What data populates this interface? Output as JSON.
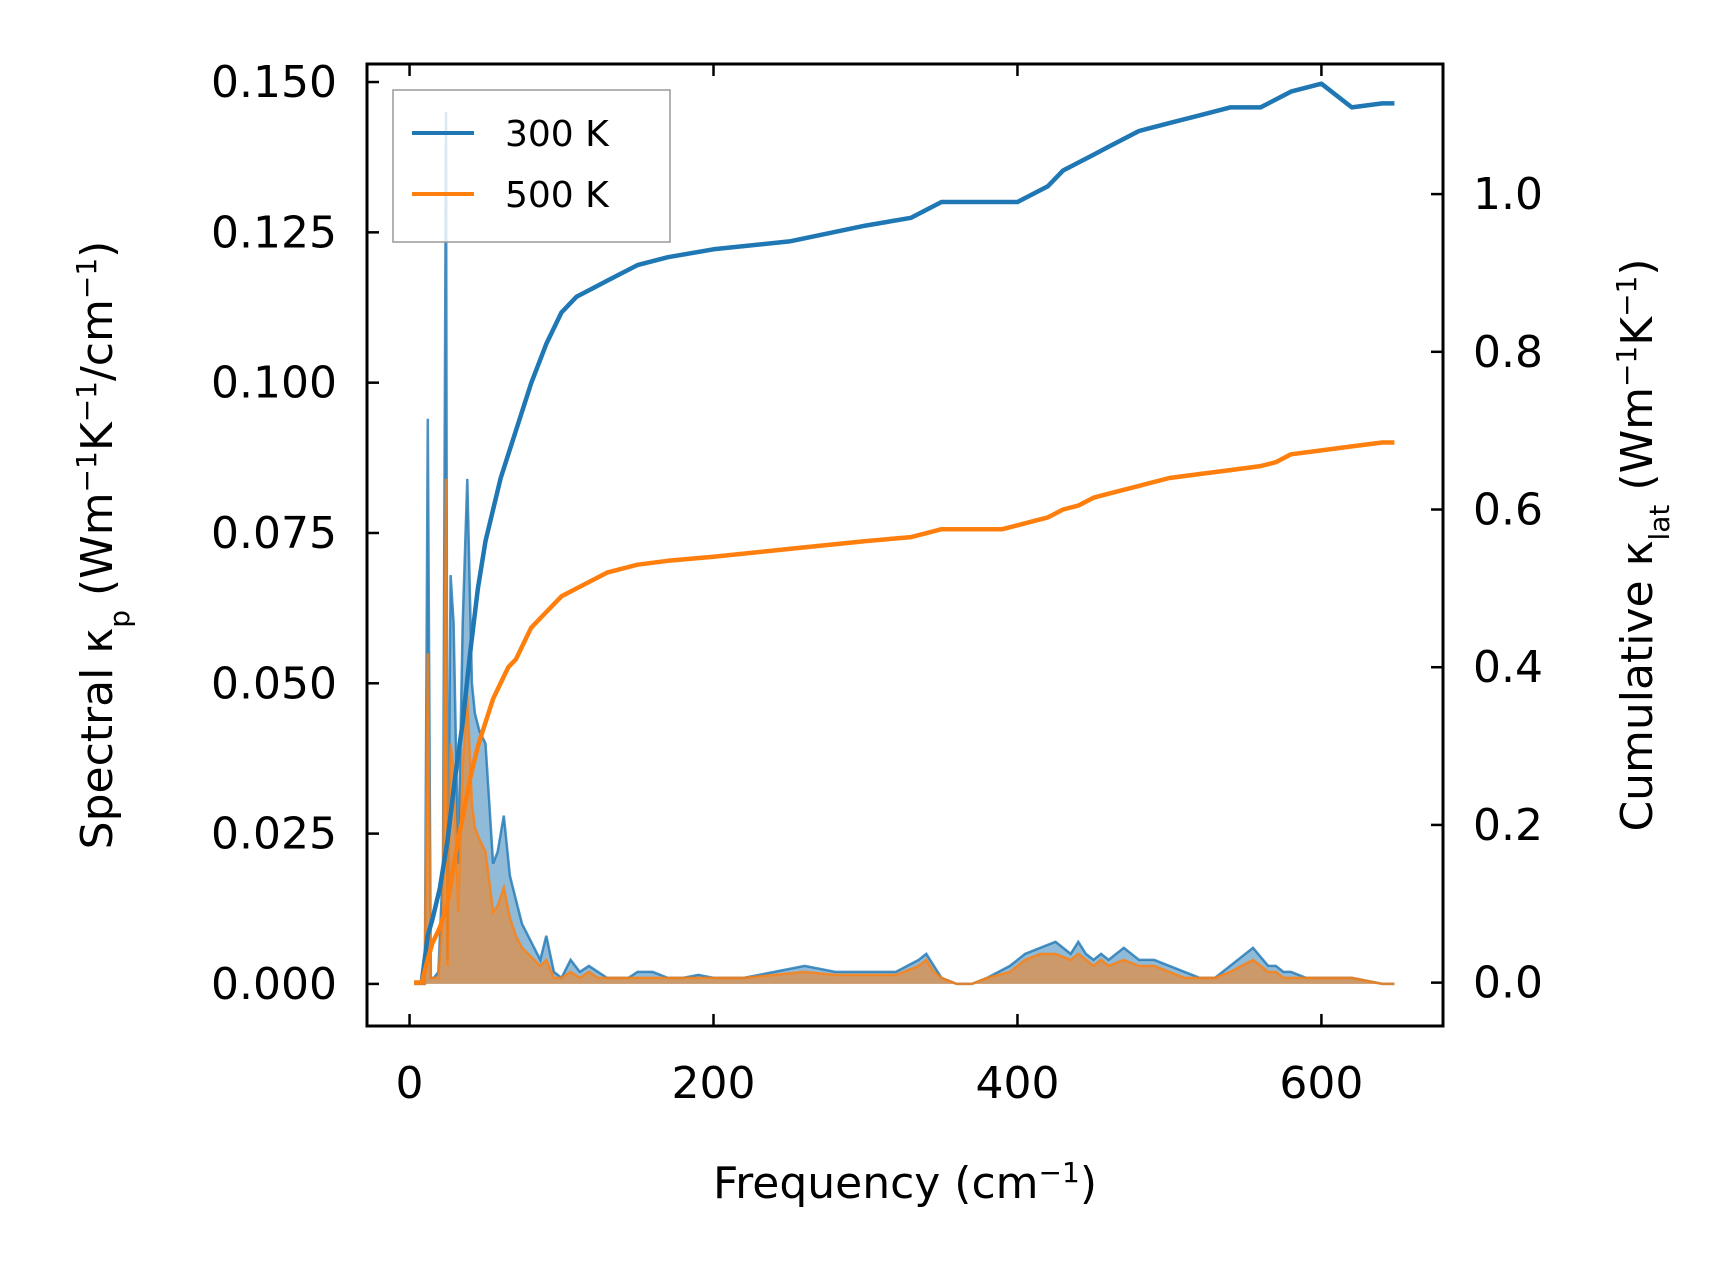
{
  "chart_data": {
    "type": "line",
    "title": "",
    "xlabel": "Frequency (cm",
    "xlabel_sup": "−1",
    "xlabel_tail": ")",
    "ylabel": "Spectral κ",
    "ylabel_sub": "p",
    "ylabel_units": " (Wm",
    "ylabel_sup1": "−1",
    "ylabel_mid": "K",
    "ylabel_sup2": "−1",
    "ylabel_tail": "/cm",
    "ylabel_sup3": "−1",
    "ylabel_end": ")",
    "y2label": "Cumulative κ",
    "y2label_sub": "lat",
    "y2label_units": " (Wm",
    "y2label_sup1": "−1",
    "y2label_mid": "K",
    "y2label_sup2": "−1",
    "y2label_end": ")",
    "xlim": [
      -28,
      680
    ],
    "ylim": [
      -0.007,
      0.153
    ],
    "y2lim": [
      -0.055,
      1.165
    ],
    "xticks": [
      0,
      200,
      400,
      600
    ],
    "xtick_labels": [
      "0",
      "200",
      "400",
      "600"
    ],
    "yticks": [
      0.0,
      0.025,
      0.05,
      0.075,
      0.1,
      0.125,
      0.15
    ],
    "ytick_labels": [
      "0.000",
      "0.025",
      "0.050",
      "0.075",
      "0.100",
      "0.125",
      "0.150"
    ],
    "y2ticks": [
      0.0,
      0.2,
      0.4,
      0.6,
      0.8,
      1.0
    ],
    "y2tick_labels": [
      "0.0",
      "0.2",
      "0.4",
      "0.6",
      "0.8",
      "1.0"
    ],
    "legend": {
      "position": "upper-left",
      "entries": [
        "300 K",
        "500 K"
      ]
    },
    "grid": false,
    "colors": {
      "s300": "#1f77b4",
      "s500": "#ff7f0e",
      "fill300": "#1f77b4",
      "fill500": "#ff7f0e"
    },
    "series": [
      {
        "name": "300 K",
        "kind": "spectral",
        "axis": "left",
        "x": [
          3,
          10,
          12,
          14,
          16,
          19,
          22,
          24,
          25,
          27,
          29,
          32,
          35,
          38,
          41,
          43,
          46,
          50,
          55,
          58,
          62,
          66,
          70,
          74,
          78,
          82,
          86,
          90,
          95,
          100,
          106,
          112,
          118,
          124,
          130,
          138,
          144,
          150,
          160,
          170,
          180,
          190,
          200,
          210,
          220,
          240,
          260,
          280,
          300,
          320,
          335,
          340,
          345,
          350,
          360,
          370,
          380,
          395,
          405,
          415,
          425,
          435,
          440,
          445,
          450,
          455,
          460,
          470,
          480,
          490,
          500,
          510,
          520,
          530,
          540,
          555,
          565,
          570,
          575,
          580,
          590,
          600,
          620,
          640,
          648
        ],
        "y": [
          0,
          0,
          0.094,
          0.001,
          0.001,
          0.002,
          0.02,
          0.145,
          0.004,
          0.068,
          0.06,
          0.02,
          0.06,
          0.084,
          0.05,
          0.045,
          0.042,
          0.04,
          0.02,
          0.022,
          0.028,
          0.018,
          0.014,
          0.01,
          0.008,
          0.006,
          0.004,
          0.008,
          0.002,
          0.001,
          0.004,
          0.002,
          0.003,
          0.002,
          0.001,
          0.001,
          0.001,
          0.002,
          0.002,
          0.001,
          0.001,
          0.0015,
          0.001,
          0.001,
          0.001,
          0.002,
          0.003,
          0.002,
          0.002,
          0.002,
          0.004,
          0.005,
          0.003,
          0.001,
          0.0,
          0.0,
          0.001,
          0.003,
          0.005,
          0.006,
          0.007,
          0.005,
          0.007,
          0.005,
          0.004,
          0.005,
          0.004,
          0.006,
          0.004,
          0.004,
          0.003,
          0.002,
          0.001,
          0.001,
          0.003,
          0.006,
          0.003,
          0.003,
          0.002,
          0.002,
          0.001,
          0.001,
          0.001,
          0.0,
          0.0
        ]
      },
      {
        "name": "500 K",
        "kind": "spectral",
        "axis": "left",
        "x": [
          3,
          10,
          12,
          14,
          16,
          19,
          22,
          24,
          25,
          27,
          29,
          32,
          35,
          38,
          41,
          43,
          46,
          50,
          55,
          58,
          62,
          66,
          70,
          74,
          78,
          82,
          86,
          90,
          95,
          100,
          106,
          112,
          118,
          124,
          130,
          138,
          144,
          150,
          160,
          170,
          180,
          190,
          200,
          210,
          220,
          240,
          260,
          280,
          300,
          320,
          335,
          340,
          345,
          350,
          360,
          370,
          380,
          395,
          405,
          415,
          425,
          435,
          440,
          445,
          450,
          455,
          460,
          470,
          480,
          490,
          500,
          510,
          520,
          530,
          540,
          555,
          565,
          570,
          575,
          580,
          590,
          600,
          620,
          640,
          648
        ],
        "y": [
          0,
          0,
          0.055,
          0.001,
          0.001,
          0.001,
          0.012,
          0.084,
          0.003,
          0.04,
          0.036,
          0.012,
          0.036,
          0.048,
          0.03,
          0.026,
          0.024,
          0.022,
          0.012,
          0.013,
          0.016,
          0.011,
          0.008,
          0.006,
          0.005,
          0.004,
          0.003,
          0.004,
          0.001,
          0.001,
          0.002,
          0.001,
          0.002,
          0.001,
          0.001,
          0.001,
          0.001,
          0.001,
          0.001,
          0.001,
          0.001,
          0.001,
          0.001,
          0.001,
          0.001,
          0.0015,
          0.002,
          0.0015,
          0.0015,
          0.0015,
          0.003,
          0.004,
          0.002,
          0.001,
          0.0,
          0.0,
          0.001,
          0.002,
          0.004,
          0.005,
          0.005,
          0.004,
          0.005,
          0.004,
          0.003,
          0.004,
          0.003,
          0.004,
          0.003,
          0.003,
          0.002,
          0.001,
          0.001,
          0.001,
          0.002,
          0.004,
          0.002,
          0.002,
          0.001,
          0.001,
          0.001,
          0.001,
          0.001,
          0.0,
          0.0
        ]
      },
      {
        "name": "300 K cumulative",
        "kind": "cumulative",
        "axis": "right",
        "x": [
          3,
          8,
          12,
          15,
          20,
          25,
          30,
          35,
          40,
          45,
          50,
          55,
          60,
          65,
          70,
          80,
          90,
          100,
          110,
          120,
          130,
          150,
          170,
          200,
          250,
          300,
          330,
          340,
          350,
          370,
          390,
          400,
          410,
          420,
          430,
          440,
          450,
          460,
          470,
          480,
          500,
          520,
          540,
          560,
          570,
          580,
          600,
          620,
          640,
          648
        ],
        "y": [
          0,
          0,
          0.06,
          0.08,
          0.12,
          0.18,
          0.26,
          0.33,
          0.42,
          0.5,
          0.56,
          0.6,
          0.64,
          0.67,
          0.7,
          0.76,
          0.81,
          0.85,
          0.87,
          0.88,
          0.89,
          0.91,
          0.92,
          0.93,
          0.94,
          0.96,
          0.97,
          0.98,
          0.99,
          0.99,
          0.99,
          0.99,
          1.0,
          1.01,
          1.03,
          1.04,
          1.05,
          1.06,
          1.07,
          1.08,
          1.09,
          1.1,
          1.11,
          1.11,
          1.12,
          1.13,
          1.14,
          1.11,
          1.115,
          1.115
        ]
      },
      {
        "name": "500 K cumulative",
        "kind": "cumulative",
        "axis": "right",
        "x": [
          3,
          8,
          12,
          15,
          20,
          25,
          30,
          35,
          40,
          45,
          50,
          55,
          60,
          65,
          70,
          80,
          90,
          100,
          110,
          120,
          130,
          150,
          170,
          200,
          250,
          300,
          330,
          340,
          350,
          370,
          390,
          400,
          410,
          420,
          430,
          440,
          450,
          460,
          470,
          480,
          500,
          520,
          540,
          560,
          570,
          580,
          600,
          620,
          640,
          648
        ],
        "y": [
          0,
          0,
          0.03,
          0.05,
          0.07,
          0.1,
          0.16,
          0.21,
          0.26,
          0.3,
          0.33,
          0.36,
          0.38,
          0.4,
          0.41,
          0.45,
          0.47,
          0.49,
          0.5,
          0.51,
          0.52,
          0.53,
          0.535,
          0.54,
          0.55,
          0.56,
          0.565,
          0.57,
          0.575,
          0.575,
          0.575,
          0.58,
          0.585,
          0.59,
          0.6,
          0.605,
          0.615,
          0.62,
          0.625,
          0.63,
          0.64,
          0.645,
          0.65,
          0.655,
          0.66,
          0.67,
          0.675,
          0.68,
          0.685,
          0.685
        ]
      }
    ]
  }
}
